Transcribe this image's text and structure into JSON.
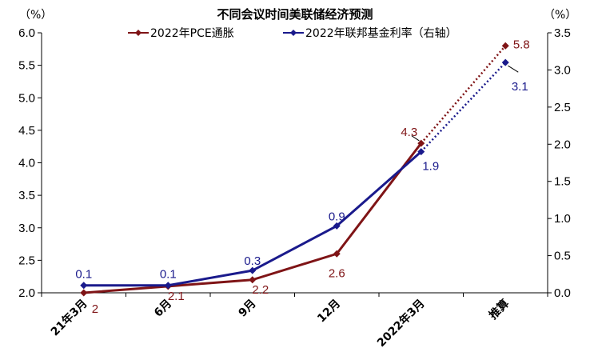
{
  "chart_data": {
    "type": "line",
    "title": "不同会议时间美联储经济预测",
    "left_unit": "（%）",
    "right_unit": "（%）",
    "categories": [
      "21年3月",
      "6月",
      "9月",
      "12月",
      "2022年3月",
      "推算"
    ],
    "left_axis": {
      "min": 2.0,
      "max": 6.0,
      "ticks": [
        "2.0",
        "2.5",
        "3.0",
        "3.5",
        "4.0",
        "4.5",
        "5.0",
        "5.5",
        "6.0"
      ]
    },
    "right_axis": {
      "min": 0.0,
      "max": 3.5,
      "ticks": [
        "0.0",
        "0.5",
        "1.0",
        "1.5",
        "2.0",
        "2.5",
        "3.0",
        "3.5"
      ]
    },
    "series": [
      {
        "name": "2022年PCE通胀",
        "axis": "left",
        "color": "#7f1416",
        "values": [
          2.0,
          2.1,
          2.2,
          2.6,
          4.3,
          5.8
        ],
        "labels": [
          "2",
          "2.1",
          "2.2",
          "2.6",
          "4.3",
          "5.8"
        ],
        "projected_from_index": 4
      },
      {
        "name": "2022年联邦基金利率（右轴）",
        "axis": "right",
        "color": "#1a1a8c",
        "values": [
          0.1,
          0.1,
          0.3,
          0.9,
          1.9,
          3.1
        ],
        "labels": [
          "0.1",
          "0.1",
          "0.3",
          "0.9",
          "1.9",
          "3.1"
        ],
        "projected_from_index": 4
      }
    ]
  }
}
